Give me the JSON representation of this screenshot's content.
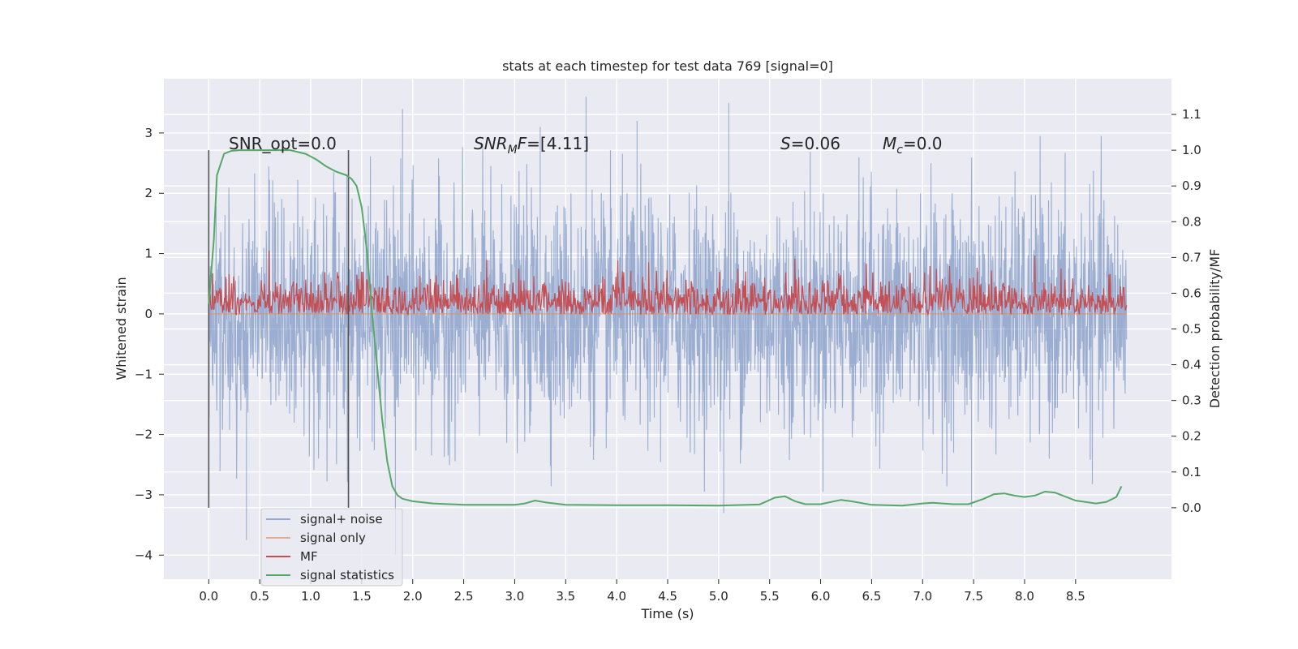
{
  "chart_data": {
    "type": "line",
    "title": "stats at each timestep for test data 769 [signal=0]",
    "xlabel": "Time (s)",
    "ylabel_left": "Whitened strain",
    "ylabel_right": "Detection probability/MF",
    "xlim": [
      -0.44,
      9.44
    ],
    "ylim_left": [
      -4.4,
      3.9
    ],
    "ylim_right": [
      -0.2,
      1.2
    ],
    "x_ticks": [
      0.0,
      0.5,
      1.0,
      1.5,
      2.0,
      2.5,
      3.0,
      3.5,
      4.0,
      4.5,
      5.0,
      5.5,
      6.0,
      6.5,
      7.0,
      7.5,
      8.0,
      8.5
    ],
    "x_tick_labels": [
      "0.0",
      "0.5",
      "1.0",
      "1.5",
      "2.0",
      "2.5",
      "3.0",
      "3.5",
      "4.0",
      "4.5",
      "5.0",
      "5.5",
      "6.0",
      "6.5",
      "7.0",
      "7.5",
      "8.0",
      "8.5"
    ],
    "y_left_ticks": [
      -4,
      -3,
      -2,
      -1,
      0,
      1,
      2,
      3
    ],
    "y_left_tick_labels": [
      "−4",
      "−3",
      "−2",
      "−1",
      "0",
      "1",
      "2",
      "3"
    ],
    "y_right_ticks": [
      0.0,
      0.1,
      0.2,
      0.3,
      0.4,
      0.5,
      0.6,
      0.7,
      0.8,
      0.9,
      1.0,
      1.1
    ],
    "y_right_tick_labels": [
      "0.0",
      "0.1",
      "0.2",
      "0.3",
      "0.4",
      "0.5",
      "0.6",
      "0.7",
      "0.8",
      "0.9",
      "1.0",
      "1.1"
    ],
    "grid": true,
    "legend_position": "lower-left",
    "series": [
      {
        "name": "signal+ noise",
        "axis": "left",
        "color": "#4c72b0",
        "description": "dense noise trace from t=0 to t=9, roughly between -3 and 3",
        "x_range": [
          0.0,
          9.0
        ],
        "noise_spike_times": [
          0.37,
          1.83,
          1.9,
          5.05,
          7.48
        ],
        "noise_spike_values": [
          -3.75,
          -4.0,
          3.4,
          -3.3,
          -3.2
        ],
        "noise_peak_times": [
          3.7,
          5.1,
          3.25,
          4.2
        ],
        "noise_peak_values": [
          3.6,
          3.5,
          3.1,
          3.2
        ]
      },
      {
        "name": "signal only",
        "axis": "left",
        "color": "#dd8452",
        "values_constant": 0.0,
        "x_range": [
          0.0,
          9.0
        ]
      },
      {
        "name": "MF",
        "axis": "right",
        "color": "#c44e52",
        "description": "matched filter output fluctuating around 0.6 on the right axis",
        "x_range": [
          0.0,
          9.0
        ],
        "base": 0.54,
        "range": [
          0.54,
          0.72
        ]
      },
      {
        "name": "signal statistics",
        "axis": "right",
        "color": "#55a868",
        "x": [
          0.0,
          0.05,
          0.08,
          0.15,
          0.22,
          0.3,
          0.5,
          0.8,
          0.95,
          1.05,
          1.15,
          1.25,
          1.35,
          1.4,
          1.45,
          1.5,
          1.55,
          1.6,
          1.65,
          1.7,
          1.75,
          1.8,
          1.85,
          1.9,
          2.0,
          2.2,
          2.5,
          3.0,
          3.1,
          3.2,
          3.3,
          3.5,
          4.0,
          4.5,
          5.0,
          5.4,
          5.55,
          5.65,
          5.75,
          5.85,
          6.0,
          6.1,
          6.2,
          6.3,
          6.5,
          6.8,
          7.0,
          7.1,
          7.3,
          7.45,
          7.6,
          7.7,
          7.8,
          7.9,
          8.0,
          8.1,
          8.2,
          8.3,
          8.5,
          8.7,
          8.8,
          8.9,
          8.95
        ],
        "values": [
          0.57,
          0.75,
          0.93,
          0.99,
          0.998,
          1.0,
          1.0,
          1.0,
          0.99,
          0.975,
          0.955,
          0.94,
          0.93,
          0.92,
          0.9,
          0.84,
          0.72,
          0.55,
          0.4,
          0.25,
          0.13,
          0.06,
          0.035,
          0.025,
          0.018,
          0.012,
          0.008,
          0.008,
          0.012,
          0.02,
          0.015,
          0.008,
          0.007,
          0.007,
          0.006,
          0.009,
          0.028,
          0.032,
          0.018,
          0.01,
          0.01,
          0.016,
          0.022,
          0.018,
          0.008,
          0.006,
          0.012,
          0.014,
          0.01,
          0.01,
          0.025,
          0.038,
          0.04,
          0.034,
          0.03,
          0.034,
          0.045,
          0.042,
          0.02,
          0.012,
          0.016,
          0.03,
          0.06
        ]
      }
    ],
    "vertical_lines": [
      {
        "x": 0.0,
        "color": "#555555"
      },
      {
        "x": 1.37,
        "color": "#555555"
      }
    ],
    "annotations": {
      "snr_opt": "SNR_opt=0.0",
      "snr_mf_main": "SNR",
      "snr_mf_sub": "M",
      "snr_mf_tail_it": "F",
      "snr_mf_value": "=[4.11]",
      "s_label": "S",
      "s_value": "=0.06",
      "mc_label": "M",
      "mc_sub": "c",
      "mc_value": "=0.0"
    },
    "legend": [
      "signal+ noise",
      "signal only",
      "MF",
      "signal statistics"
    ]
  }
}
